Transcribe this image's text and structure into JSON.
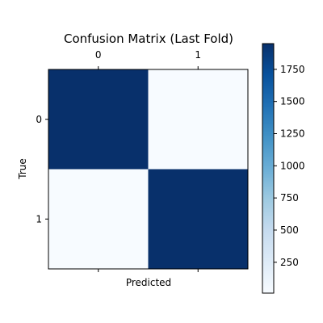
{
  "chart_data": {
    "type": "heatmap",
    "title": "Confusion Matrix (Last Fold)",
    "xlabel": "Predicted",
    "ylabel": "True",
    "x_categories": [
      "0",
      "1"
    ],
    "y_categories": [
      "0",
      "1"
    ],
    "x_ticks_position": "top-and-bottom",
    "values": [
      [
        1950,
        10
      ],
      [
        10,
        1950
      ]
    ],
    "colormap": "Blues",
    "color_range": [
      10,
      1950
    ],
    "colorbar": {
      "ticks": [
        250,
        500,
        750,
        1000,
        1250,
        1500,
        1750
      ]
    },
    "grid": false,
    "colorbar_position": "right"
  }
}
